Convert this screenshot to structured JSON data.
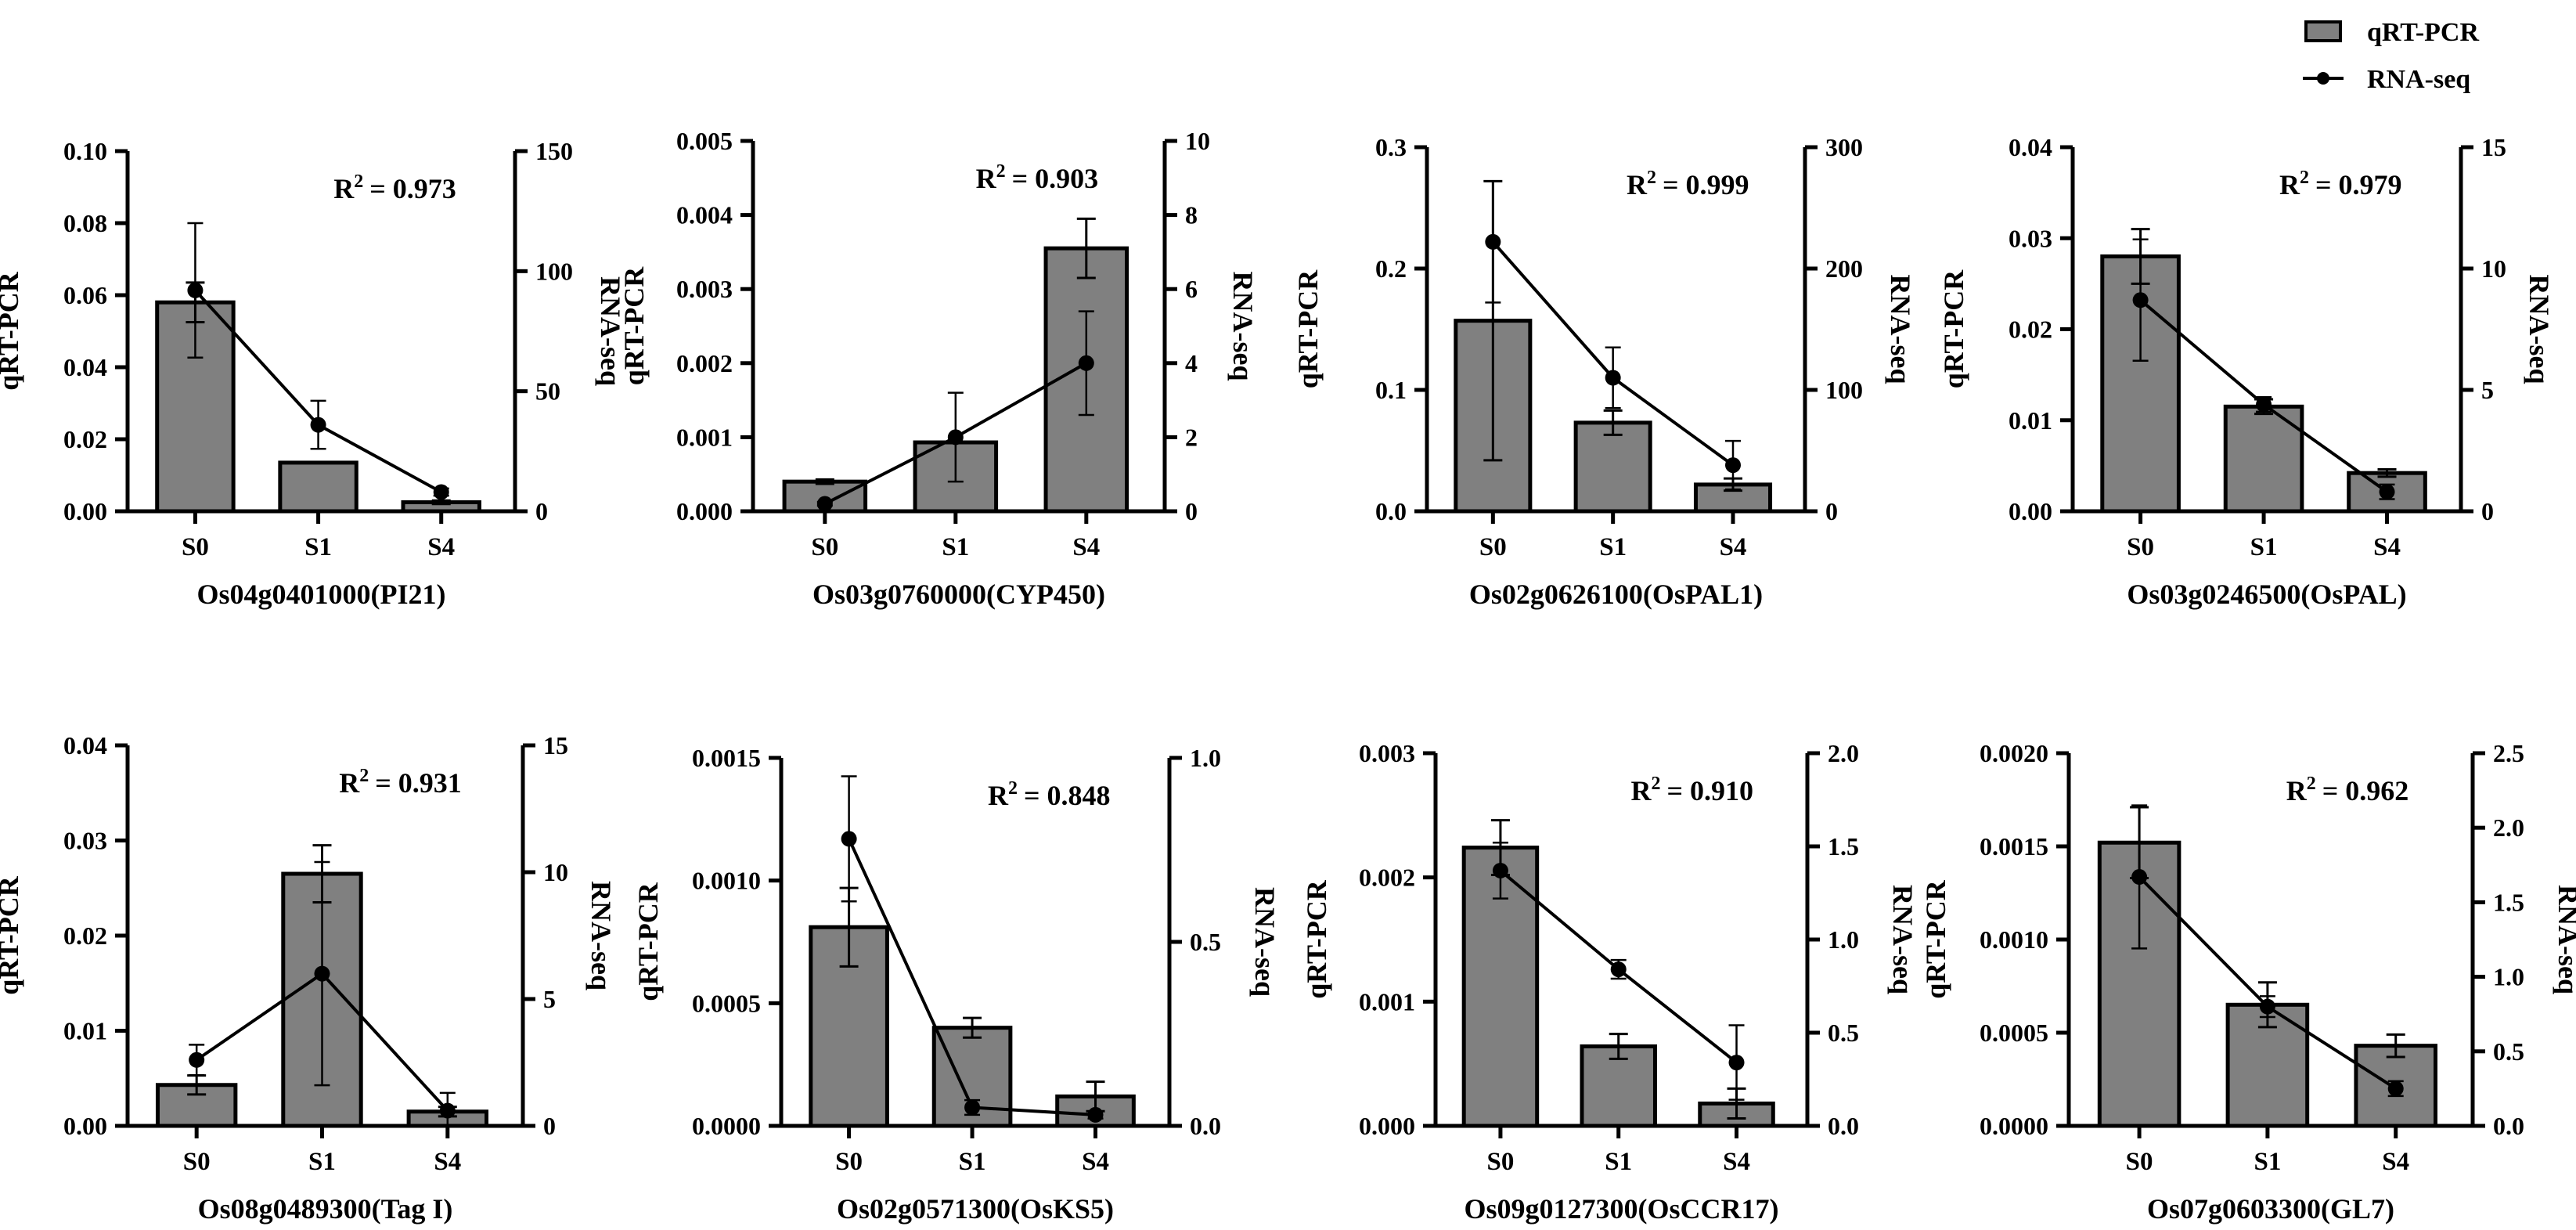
{
  "legend": {
    "bar_label": "qRT-PCR",
    "line_label": "RNA-seq"
  },
  "colors": {
    "bar_fill": "#808080",
    "stroke": "#000000",
    "background": "#ffffff"
  },
  "chart_data": [
    {
      "type": "bar",
      "title": "Os04g0401000(PI21)",
      "categories": [
        "S0",
        "S1",
        "S4"
      ],
      "ylabel": "qRT-PCR",
      "y2label": "RNA-seq",
      "r2_prefix": "R",
      "r2_value": "= 0.973",
      "ylim": [
        0,
        0.1
      ],
      "yticks": [
        "0.00",
        "0.02",
        "0.04",
        "0.06",
        "0.08",
        "0.10"
      ],
      "y2lim": [
        0,
        150
      ],
      "y2ticks": [
        "0",
        "50",
        "100",
        "150"
      ],
      "series": [
        {
          "name": "qRT-PCR",
          "values": [
            0.058,
            0.0135,
            0.0025
          ],
          "errors": [
            0.0055,
            0.0,
            0.0005
          ]
        },
        {
          "name": "RNA-seq",
          "values": [
            92,
            36,
            8
          ],
          "errors": [
            28,
            10,
            1.5
          ]
        }
      ]
    },
    {
      "type": "bar",
      "title": "Os03g0760000(CYP450)",
      "categories": [
        "S0",
        "S1",
        "S4"
      ],
      "ylabel": "qRT-PCR",
      "y2label": "RNA-seq",
      "r2_prefix": "R",
      "r2_value": "= 0.903",
      "ylim": [
        0,
        0.005
      ],
      "yticks": [
        "0.000",
        "0.001",
        "0.002",
        "0.003",
        "0.004",
        "0.005"
      ],
      "y2lim": [
        0,
        10
      ],
      "y2ticks": [
        "0",
        "2",
        "4",
        "6",
        "8",
        "10"
      ],
      "series": [
        {
          "name": "qRT-PCR",
          "values": [
            0.0004,
            0.00093,
            0.00355
          ],
          "errors": [
            3e-05,
            0.0,
            0.0004
          ]
        },
        {
          "name": "RNA-seq",
          "values": [
            0.2,
            2.0,
            4.0
          ],
          "errors": [
            0.05,
            1.2,
            1.4
          ]
        }
      ]
    },
    {
      "type": "bar",
      "title": "Os02g0626100(OsPAL1)",
      "categories": [
        "S0",
        "S1",
        "S4"
      ],
      "ylabel": "qRT-PCR",
      "y2label": "RNA-seq",
      "r2_prefix": "R",
      "r2_value": "= 0.999",
      "ylim": [
        0,
        0.3
      ],
      "yticks": [
        "0.0",
        "0.1",
        "0.2",
        "0.3"
      ],
      "y2lim": [
        0,
        300
      ],
      "y2ticks": [
        "0",
        "100",
        "200",
        "300"
      ],
      "series": [
        {
          "name": "qRT-PCR",
          "values": [
            0.157,
            0.073,
            0.022
          ],
          "errors": [
            0.115,
            0.01,
            0.005
          ]
        },
        {
          "name": "RNA-seq",
          "values": [
            222,
            110,
            38
          ],
          "errors": [
            50,
            25,
            20
          ]
        }
      ]
    },
    {
      "type": "bar",
      "title": "Os03g0246500(OsPAL)",
      "categories": [
        "S0",
        "S1",
        "S4"
      ],
      "ylabel": "qRT-PCR",
      "y2label": "RNA-seq",
      "r2_prefix": "R",
      "r2_value": "= 0.979",
      "ylim": [
        0,
        0.04
      ],
      "yticks": [
        "0.00",
        "0.01",
        "0.02",
        "0.03",
        "0.04"
      ],
      "y2lim": [
        0,
        15
      ],
      "y2ticks": [
        "0",
        "5",
        "10",
        "15"
      ],
      "series": [
        {
          "name": "qRT-PCR",
          "values": [
            0.028,
            0.0115,
            0.0042
          ],
          "errors": [
            0.003,
            0.0008,
            0.0004
          ]
        },
        {
          "name": "RNA-seq",
          "values": [
            8.7,
            4.4,
            0.8
          ],
          "errors": [
            2.5,
            0.3,
            0.3
          ]
        }
      ]
    },
    {
      "type": "bar",
      "title": "Os08g0489300(Tag I)",
      "categories": [
        "S0",
        "S1",
        "S4"
      ],
      "ylabel": "qRT-PCR",
      "y2label": "RNA-seq",
      "r2_prefix": "R",
      "r2_value": "= 0.931",
      "ylim": [
        0,
        0.04
      ],
      "yticks": [
        "0.00",
        "0.01",
        "0.02",
        "0.03",
        "0.04"
      ],
      "y2lim": [
        0,
        15
      ],
      "y2ticks": [
        "0",
        "5",
        "10",
        "15"
      ],
      "series": [
        {
          "name": "qRT-PCR",
          "values": [
            0.0043,
            0.0265,
            0.0015
          ],
          "errors": [
            0.001,
            0.003,
            0.0005
          ]
        },
        {
          "name": "RNA-seq",
          "values": [
            2.6,
            6.0,
            0.6
          ],
          "errors": [
            0.6,
            4.4,
            0.7
          ]
        }
      ]
    },
    {
      "type": "bar",
      "title": "Os02g0571300(OsKS5)",
      "categories": [
        "S0",
        "S1",
        "S4"
      ],
      "ylabel": "qRT-PCR",
      "y2label": "RNA-seq",
      "r2_prefix": "R",
      "r2_value": "= 0.848",
      "ylim": [
        0,
        0.0015
      ],
      "yticks": [
        "0.0000",
        "0.0005",
        "0.0010",
        "0.0015"
      ],
      "y2lim": [
        0,
        1.0
      ],
      "y2ticks": [
        "0.0",
        "0.5",
        "1.0"
      ],
      "series": [
        {
          "name": "qRT-PCR",
          "values": [
            0.00081,
            0.0004,
            0.00012
          ],
          "errors": [
            0.00016,
            4e-05,
            6e-05
          ]
        },
        {
          "name": "RNA-seq",
          "values": [
            0.78,
            0.05,
            0.03
          ],
          "errors": [
            0.17,
            0.02,
            0.01
          ]
        }
      ]
    },
    {
      "type": "bar",
      "title": "Os09g0127300(OsCCR17)",
      "categories": [
        "S0",
        "S1",
        "S4"
      ],
      "ylabel": "qRT-PCR",
      "y2label": "RNA-seq",
      "r2_prefix": "R",
      "r2_value": "= 0.910",
      "ylim": [
        0,
        0.003
      ],
      "yticks": [
        "0.000",
        "0.001",
        "0.002",
        "0.003"
      ],
      "y2lim": [
        0,
        2.0
      ],
      "y2ticks": [
        "0.0",
        "0.5",
        "1.0",
        "1.5",
        "2.0"
      ],
      "series": [
        {
          "name": "qRT-PCR",
          "values": [
            0.00224,
            0.00064,
            0.00018
          ],
          "errors": [
            0.00022,
            0.0001,
            0.00012
          ]
        },
        {
          "name": "RNA-seq",
          "values": [
            1.37,
            0.84,
            0.34
          ],
          "errors": [
            0.15,
            0.05,
            0.2
          ]
        }
      ]
    },
    {
      "type": "bar",
      "title": "Os07g0603300(GL7)",
      "categories": [
        "S0",
        "S1",
        "S4"
      ],
      "ylabel": "qRT-PCR",
      "y2label": "RNA-seq",
      "r2_prefix": "R",
      "r2_value": "= 0.962",
      "ylim": [
        0,
        0.002
      ],
      "yticks": [
        "0.0000",
        "0.0005",
        "0.0010",
        "0.0015",
        "0.0020"
      ],
      "y2lim": [
        0,
        2.5
      ],
      "y2ticks": [
        "0.0",
        "0.5",
        "1.0",
        "1.5",
        "2.0",
        "2.5"
      ],
      "series": [
        {
          "name": "qRT-PCR",
          "values": [
            0.00152,
            0.00065,
            0.00043
          ],
          "errors": [
            0.00019,
            0.00012,
            6e-05
          ]
        },
        {
          "name": "RNA-seq",
          "values": [
            1.67,
            0.8,
            0.25
          ],
          "errors": [
            0.48,
            0.07,
            0.05
          ]
        }
      ]
    }
  ]
}
